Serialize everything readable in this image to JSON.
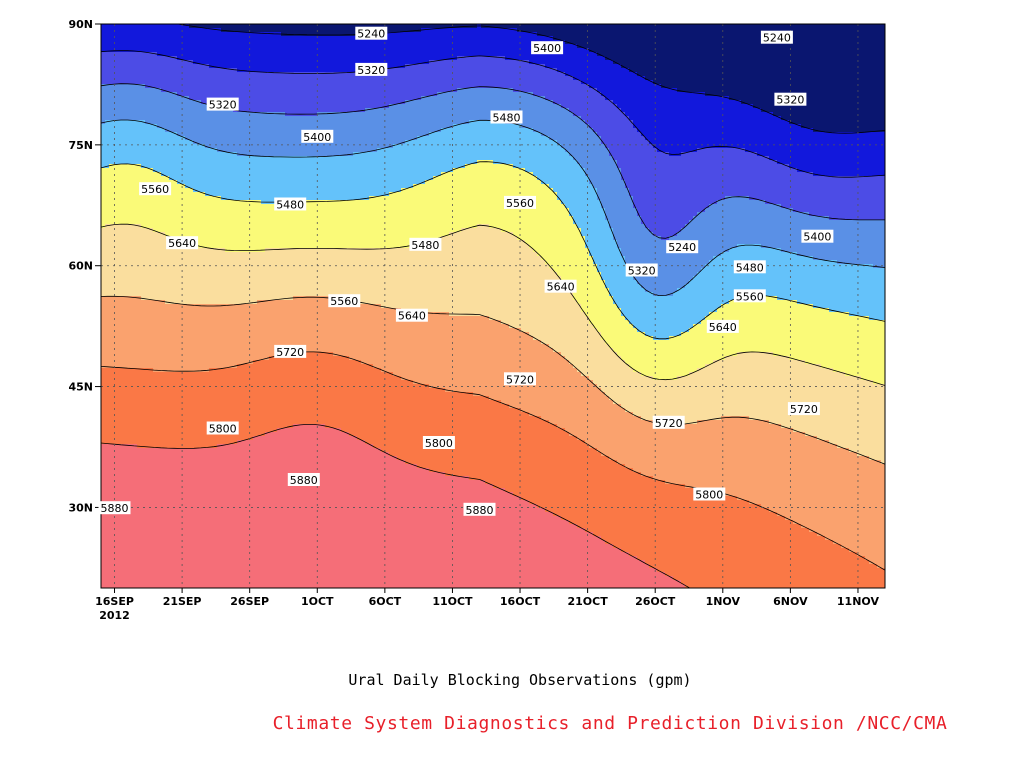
{
  "chart_data": {
    "type": "contour",
    "title": "Ural Daily Blocking Observations (gpm)",
    "footer": "Climate System Diagnostics and Prediction Division /NCC/CMA",
    "x_tick_labels": [
      "16SEP",
      "21SEP",
      "26SEP",
      "1OCT",
      "6OCT",
      "11OCT",
      "16OCT",
      "21OCT",
      "26OCT",
      "1NOV",
      "6NOV",
      "11NOV"
    ],
    "x_year_label": "2012",
    "x_range": [
      "2012-09-15",
      "2012-11-12"
    ],
    "y_tick_labels": [
      "30N",
      "45N",
      "60N",
      "75N",
      "90N"
    ],
    "y_range": [
      20,
      90
    ],
    "grid": true,
    "contour_levels": [
      5240,
      5320,
      5400,
      5480,
      5560,
      5640,
      5720,
      5800,
      5880
    ],
    "fill_colors": [
      "#0a1670",
      "#1218dc",
      "#4c4ce6",
      "#5a90e6",
      "#64c2fa",
      "#fafa78",
      "#fade9e",
      "#faa26e",
      "#fa7846",
      "#f56e78",
      "#f0324b"
    ],
    "contour_labels": [
      {
        "value": "5240",
        "date": "2012-10-05",
        "lat": 88.8
      },
      {
        "value": "5240",
        "date": "2012-11-04",
        "lat": 88.3
      },
      {
        "value": "5240",
        "date": "2012-10-28",
        "lat": 62.3
      },
      {
        "value": "5320",
        "date": "2012-09-24",
        "lat": 80.0
      },
      {
        "value": "5320",
        "date": "2012-10-05",
        "lat": 84.3
      },
      {
        "value": "5320",
        "date": "2012-11-05",
        "lat": 80.6
      },
      {
        "value": "5320",
        "date": "2012-10-25",
        "lat": 59.4
      },
      {
        "value": "5400",
        "date": "2012-10-01",
        "lat": 76.0
      },
      {
        "value": "5400",
        "date": "2012-10-18",
        "lat": 87.0
      },
      {
        "value": "5400",
        "date": "2012-11-07",
        "lat": 63.6
      },
      {
        "value": "5480",
        "date": "2012-10-15",
        "lat": 78.4
      },
      {
        "value": "5480",
        "date": "2012-09-29",
        "lat": 67.6
      },
      {
        "value": "5480",
        "date": "2012-10-09",
        "lat": 62.6
      },
      {
        "value": "5480",
        "date": "2012-11-02",
        "lat": 59.8
      },
      {
        "value": "5560",
        "date": "2012-09-19",
        "lat": 69.5
      },
      {
        "value": "5560",
        "date": "2012-10-16",
        "lat": 67.8
      },
      {
        "value": "5560",
        "date": "2012-10-03",
        "lat": 55.6
      },
      {
        "value": "5560",
        "date": "2012-11-02",
        "lat": 56.2
      },
      {
        "value": "5640",
        "date": "2012-09-21",
        "lat": 62.8
      },
      {
        "value": "5640",
        "date": "2012-10-08",
        "lat": 53.8
      },
      {
        "value": "5640",
        "date": "2012-10-19",
        "lat": 57.4
      },
      {
        "value": "5640",
        "date": "2012-10-31",
        "lat": 52.4
      },
      {
        "value": "5720",
        "date": "2012-09-29",
        "lat": 49.3
      },
      {
        "value": "5720",
        "date": "2012-10-16",
        "lat": 45.9
      },
      {
        "value": "5720",
        "date": "2012-10-27",
        "lat": 40.5
      },
      {
        "value": "5720",
        "date": "2012-11-06",
        "lat": 42.2
      },
      {
        "value": "5800",
        "date": "2012-09-24",
        "lat": 39.8
      },
      {
        "value": "5800",
        "date": "2012-10-10",
        "lat": 38.0
      },
      {
        "value": "5800",
        "date": "2012-10-30",
        "lat": 31.6
      },
      {
        "value": "5880",
        "date": "2012-09-16",
        "lat": 29.9
      },
      {
        "value": "5880",
        "date": "2012-09-30",
        "lat": 33.4
      },
      {
        "value": "5880",
        "date": "2012-10-13",
        "lat": 29.7
      }
    ]
  }
}
